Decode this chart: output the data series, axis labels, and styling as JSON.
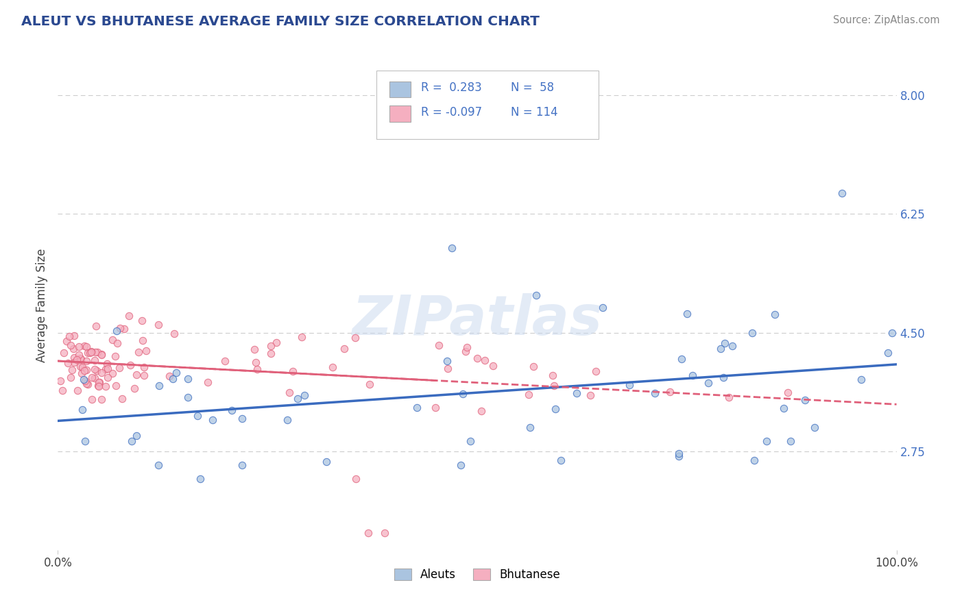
{
  "title": "ALEUT VS BHUTANESE AVERAGE FAMILY SIZE CORRELATION CHART",
  "source": "Source: ZipAtlas.com",
  "ylabel": "Average Family Size",
  "y_tick_values": [
    2.75,
    4.5,
    6.25,
    8.0
  ],
  "legend_label1": "Aleuts",
  "legend_label2": "Bhutanese",
  "legend_r1": "R =  0.283",
  "legend_n1": "N =  58",
  "legend_r2": "R = -0.097",
  "legend_n2": "N = 114",
  "color_aleut": "#aac4e0",
  "color_bhutanese": "#f5afc0",
  "color_aleut_line": "#3a6bbf",
  "color_bhutanese_line": "#e0607a",
  "color_title": "#1a3a6b",
  "color_source": "#888888",
  "color_yaxis_labels": "#4472c4",
  "color_grid": "#cccccc",
  "background_color": "#ffffff",
  "watermark": "ZIPatlas",
  "ylim_low": 1.3,
  "ylim_high": 8.5,
  "title_color": "#2b4990"
}
